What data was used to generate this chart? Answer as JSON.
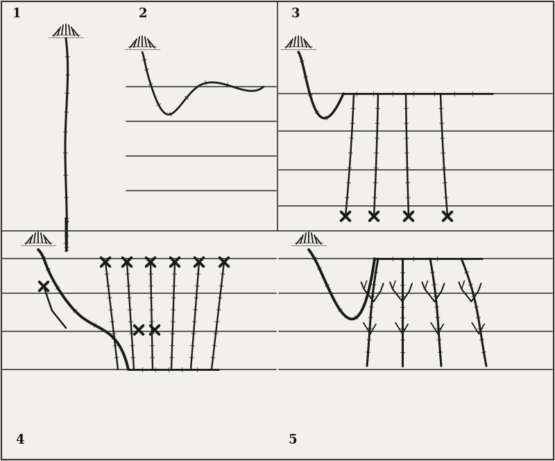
{
  "bg_color": "#f2f0eb",
  "line_color": "#1a1a1a",
  "wire_color": "#2a2a2a",
  "label_fontsize": 13,
  "label_color": "#111111"
}
